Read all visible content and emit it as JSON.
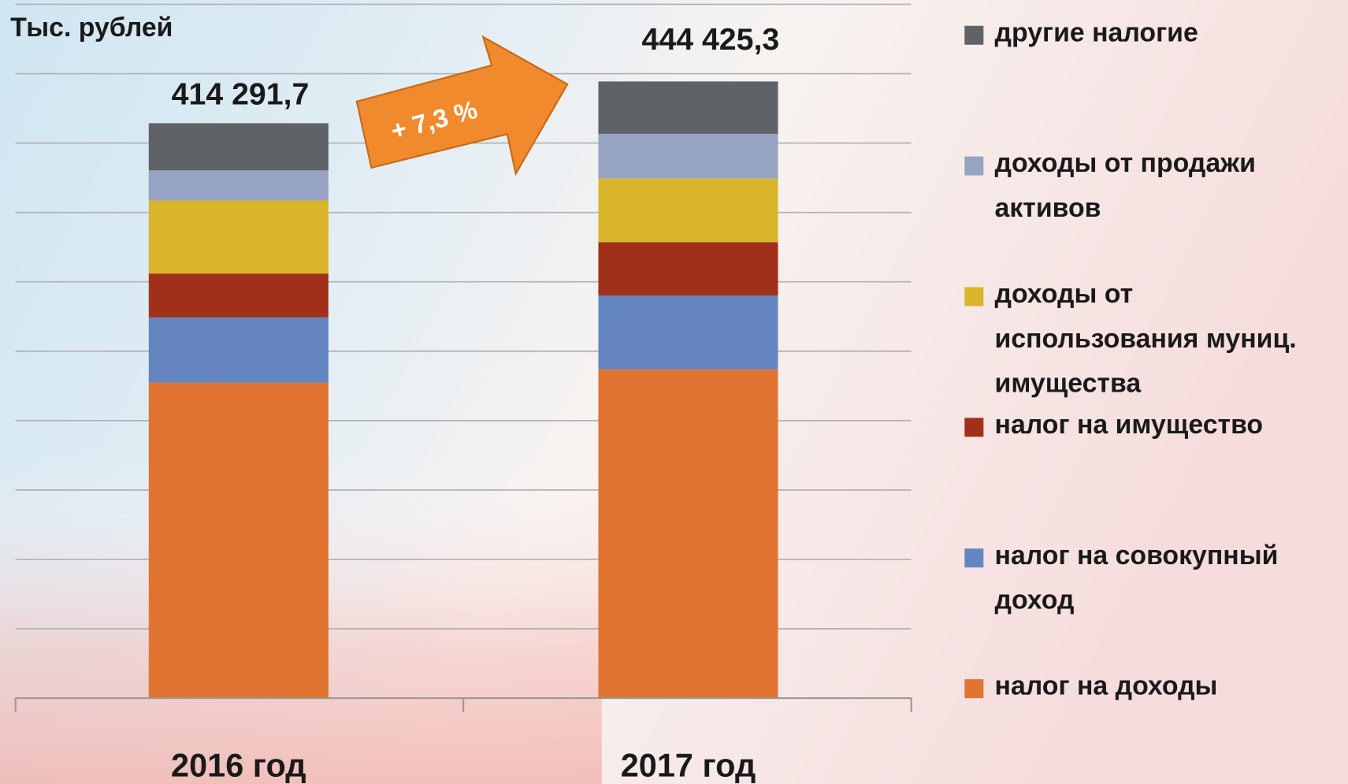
{
  "chart_data": {
    "type": "stacked-bar",
    "y_label": "Тыс. рублей",
    "categories": [
      "2016 год",
      "2017 год"
    ],
    "series": [
      {
        "name": "налог на доходы",
        "color": "#e07430",
        "values": [
          227300,
          236900
        ]
      },
      {
        "name": "налог на совокупный доход",
        "color": "#6585c1",
        "values": [
          47100,
          53300
        ]
      },
      {
        "name": "налог на имущество",
        "color": "#a0301a",
        "values": [
          31600,
          38400
        ]
      },
      {
        "name": "доходы от использования муниц. имущества",
        "color": "#d9b52a",
        "values": [
          52600,
          45800
        ]
      },
      {
        "name": "доходы от продажи активов",
        "color": "#97a3c3",
        "values": [
          21700,
          32200
        ]
      },
      {
        "name": "другие налогие",
        "color": "#5f6368",
        "values": [
          34000,
          37800
        ]
      }
    ],
    "totals": [
      414291.7,
      444425.3
    ],
    "total_labels": [
      "414 291,7",
      "444 425,3"
    ],
    "annotation": "+ 7,3 %",
    "ylim": [
      0,
      500000
    ],
    "yticks": [
      0,
      50000,
      100000,
      150000,
      200000,
      250000,
      300000,
      350000,
      400000,
      450000,
      500000
    ],
    "grid": true
  }
}
